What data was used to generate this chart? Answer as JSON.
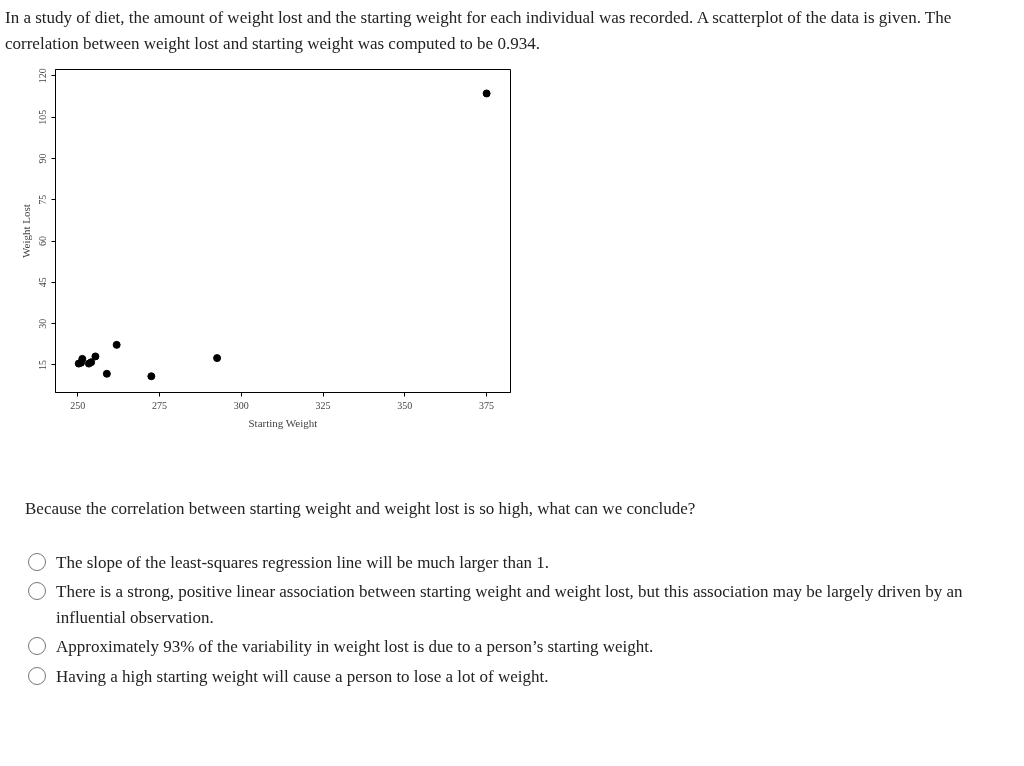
{
  "chart_data": {
    "type": "scatter",
    "title": "In a study of diet, the amount of weight lost and the starting weight for each individual was recorded. A scatterplot of the data is given. The correlation between weight lost and starting weight was computed to be 0.934.",
    "xlabel": "Starting Weight",
    "ylabel": "Weight Lost",
    "x": [
      250.3,
      251.0,
      251.4,
      253.4,
      254.1,
      255.4,
      258.9,
      261.9,
      272.5,
      292.6,
      375.0
    ],
    "series": [
      {
        "color": "#000000",
        "values": [
          15.5,
          15.8,
          17.2,
          15.5,
          16.0,
          18.1,
          11.8,
          22.3,
          10.9,
          17.5,
          113.6
        ]
      }
    ],
    "xlim": [
      243.2,
      382.3
    ],
    "ylim": [
      5.0,
      122.3
    ],
    "xticks": [
      250,
      275,
      300,
      325,
      350,
      375
    ],
    "yticks": [
      15,
      30,
      45,
      60,
      75,
      90,
      105,
      120
    ],
    "grid": false,
    "marker": "circle",
    "annotations": [
      "Because the correlation between starting weight and weight lost is so high, what can we conclude?",
      "The slope of the least-squares regression line will be much larger than 1.",
      "There is a strong, positive linear association between starting weight and weight lost, but this association may be largely driven by an influential observation.",
      "Approximately 93% of the variability in weight lost is due to a person’s starting weight.",
      "Having a high starting weight will cause a person to lose a lot of weight."
    ]
  }
}
